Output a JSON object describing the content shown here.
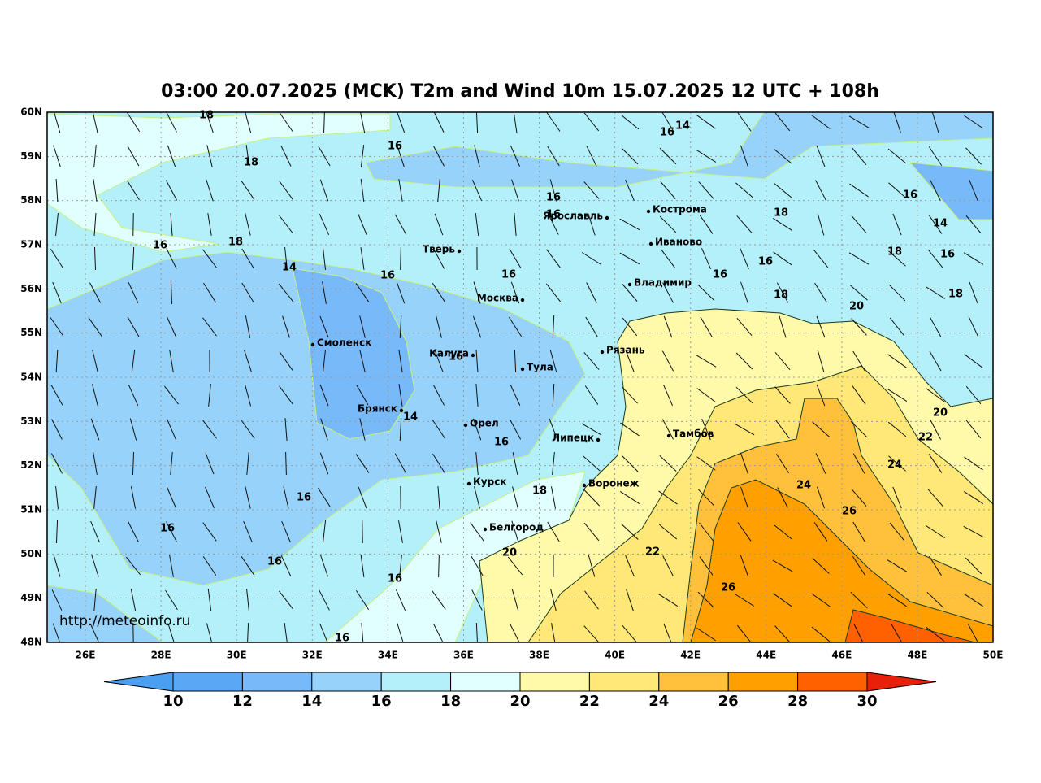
{
  "title": "03:00 20.07.2025 (MCK) T2m and Wind 10m 15.07.2025 12 UTC + 108h",
  "lat_labels": [
    "60N",
    "59N",
    "58N",
    "57N",
    "56N",
    "55N",
    "54N",
    "53N",
    "52N",
    "51N",
    "50N",
    "49N",
    "48N"
  ],
  "lon_labels": [
    "26E",
    "28E",
    "30E",
    "32E",
    "34E",
    "36E",
    "38E",
    "40E",
    "42E",
    "44E",
    "46E",
    "48E",
    "50E"
  ],
  "cities": [
    "Кострома",
    "Ярославль",
    "Иваново",
    "Тверь",
    "Владимир",
    "Москва",
    "Смоленск",
    "Калуга",
    "Тула",
    "Рязань",
    "Брянск",
    "Орел",
    "Липецк",
    "Тамбов",
    "Воронеж",
    "Курск",
    "Белгород"
  ],
  "contour_labels": [
    18,
    16,
    18,
    16,
    14,
    16,
    16,
    18,
    16,
    14,
    16,
    18,
    14,
    16,
    16,
    16,
    16,
    18,
    16,
    18,
    18,
    20,
    16,
    14,
    20,
    22,
    16,
    24,
    24,
    18,
    16,
    26,
    16,
    20,
    22,
    16,
    16,
    26,
    16
  ],
  "watermark": "http://meteoinfo.ru",
  "colorbar": {
    "ticks": [
      10,
      12,
      14,
      16,
      18,
      20,
      22,
      24,
      26,
      28,
      30
    ],
    "colors": [
      "#4b9ff0",
      "#5aa8f5",
      "#78b9fa",
      "#96d2fa",
      "#b4f0fa",
      "#e1ffff",
      "#fffaaa",
      "#ffe878",
      "#ffc03c",
      "#ffa000",
      "#ff6000",
      "#e8200a"
    ]
  }
}
